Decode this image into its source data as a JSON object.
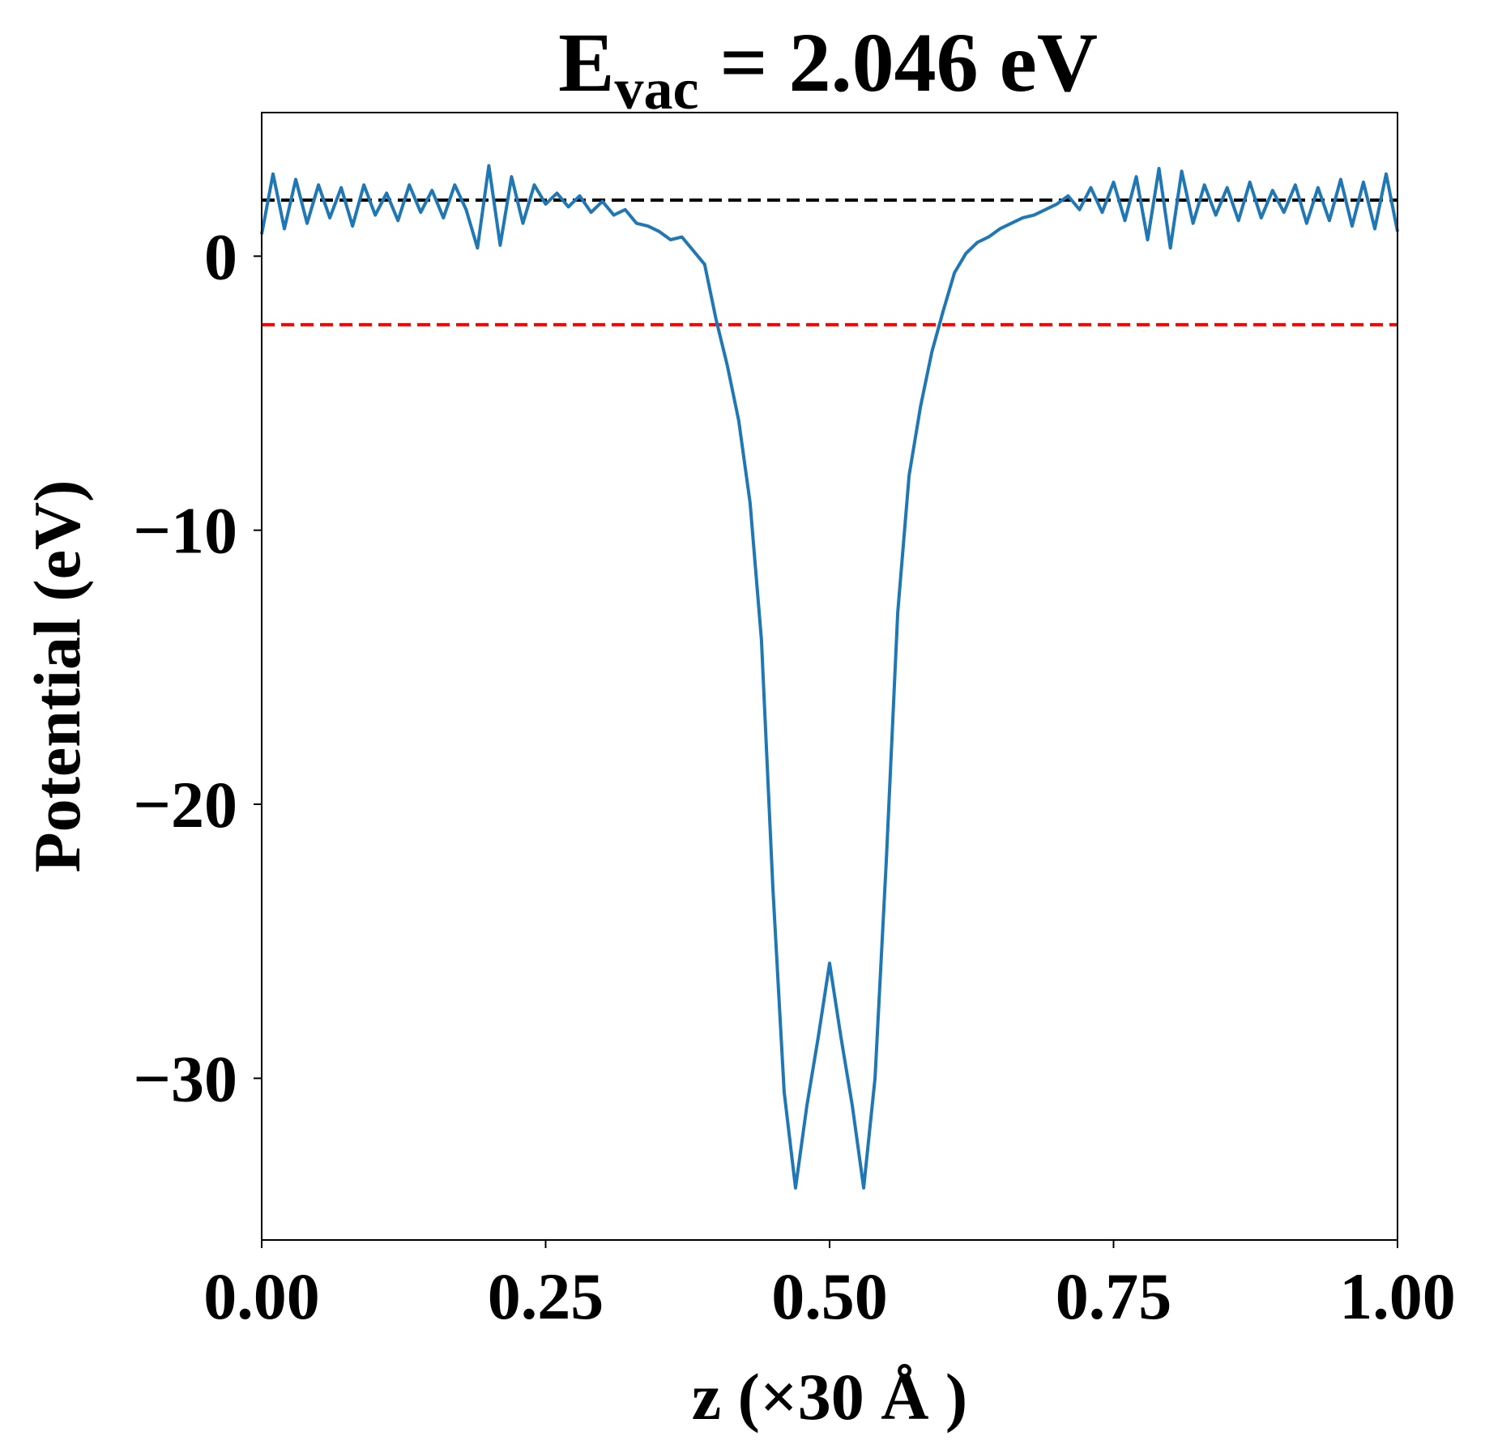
{
  "chart_data": {
    "type": "line",
    "title": [
      "E",
      "vac",
      " = 2.046 eV"
    ],
    "xlabel": "z (×30 Å )",
    "ylabel": "Potential (eV)",
    "x": [
      0,
      0.01,
      0.02,
      0.03,
      0.04,
      0.05,
      0.06,
      0.07,
      0.08,
      0.09,
      0.1,
      0.11,
      0.12,
      0.13,
      0.14,
      0.15,
      0.16,
      0.17,
      0.18,
      0.19,
      0.2,
      0.21,
      0.22,
      0.23,
      0.24,
      0.25,
      0.26,
      0.27,
      0.28,
      0.29,
      0.3,
      0.31,
      0.32,
      0.33,
      0.34,
      0.35,
      0.36,
      0.37,
      0.38,
      0.39,
      0.4,
      0.41,
      0.42,
      0.43,
      0.44,
      0.45,
      0.46,
      0.47,
      0.48,
      0.49,
      0.5,
      0.51,
      0.52,
      0.53,
      0.54,
      0.55,
      0.56,
      0.57,
      0.58,
      0.59,
      0.6,
      0.61,
      0.62,
      0.63,
      0.64,
      0.65,
      0.66,
      0.67,
      0.68,
      0.69,
      0.7,
      0.71,
      0.72,
      0.73,
      0.74,
      0.75,
      0.76,
      0.77,
      0.78,
      0.79,
      0.8,
      0.81,
      0.82,
      0.83,
      0.84,
      0.85,
      0.86,
      0.87,
      0.88,
      0.89,
      0.9,
      0.91,
      0.92,
      0.93,
      0.94,
      0.95,
      0.96,
      0.97,
      0.98,
      0.99,
      1
    ],
    "series": [
      {
        "color": "#1f77b4",
        "values": [
          0.8,
          3.0,
          1.0,
          2.8,
          1.2,
          2.6,
          1.4,
          2.5,
          1.1,
          2.6,
          1.5,
          2.3,
          1.3,
          2.6,
          1.6,
          2.4,
          1.4,
          2.6,
          1.7,
          0.3,
          3.3,
          0.4,
          2.9,
          1.2,
          2.6,
          1.9,
          2.3,
          1.8,
          2.2,
          1.6,
          2.0,
          1.5,
          1.7,
          1.2,
          1.1,
          0.9,
          0.6,
          0.7,
          0.2,
          -0.3,
          -2.3,
          -4.0,
          -6.0,
          -9.0,
          -14.0,
          -23.0,
          -30.5,
          -34.0,
          -31.0,
          -28.5,
          -25.8,
          -28.5,
          -31.0,
          -34.0,
          -30.0,
          -22.0,
          -13.0,
          -8.0,
          -5.5,
          -3.5,
          -2.0,
          -0.6,
          0.1,
          0.5,
          0.7,
          1.0,
          1.2,
          1.4,
          1.5,
          1.7,
          1.9,
          2.2,
          1.7,
          2.5,
          1.6,
          2.7,
          1.3,
          2.9,
          0.6,
          3.2,
          0.3,
          3.1,
          1.2,
          2.6,
          1.5,
          2.5,
          1.3,
          2.7,
          1.4,
          2.4,
          1.6,
          2.6,
          1.2,
          2.5,
          1.3,
          2.8,
          1.1,
          2.7,
          1.0,
          3.0,
          0.9
        ]
      }
    ],
    "hlines": [
      {
        "value": 2.046,
        "color": "#000000"
      },
      {
        "value": -2.5,
        "color": "#ff0000"
      }
    ],
    "xlim": [
      0,
      1
    ],
    "ylim": [
      -35.9,
      5.24
    ],
    "xticks": [
      {
        "value": 0,
        "label": "0.00"
      },
      {
        "value": 0.25,
        "label": "0.25"
      },
      {
        "value": 0.5,
        "label": "0.50"
      },
      {
        "value": 0.75,
        "label": "0.75"
      },
      {
        "value": 1,
        "label": "1.00"
      }
    ],
    "yticks": [
      {
        "value": 0,
        "label": "0"
      },
      {
        "value": -10,
        "label": "−10"
      },
      {
        "value": -20,
        "label": "−20"
      },
      {
        "value": -30,
        "label": "−30"
      }
    ]
  }
}
